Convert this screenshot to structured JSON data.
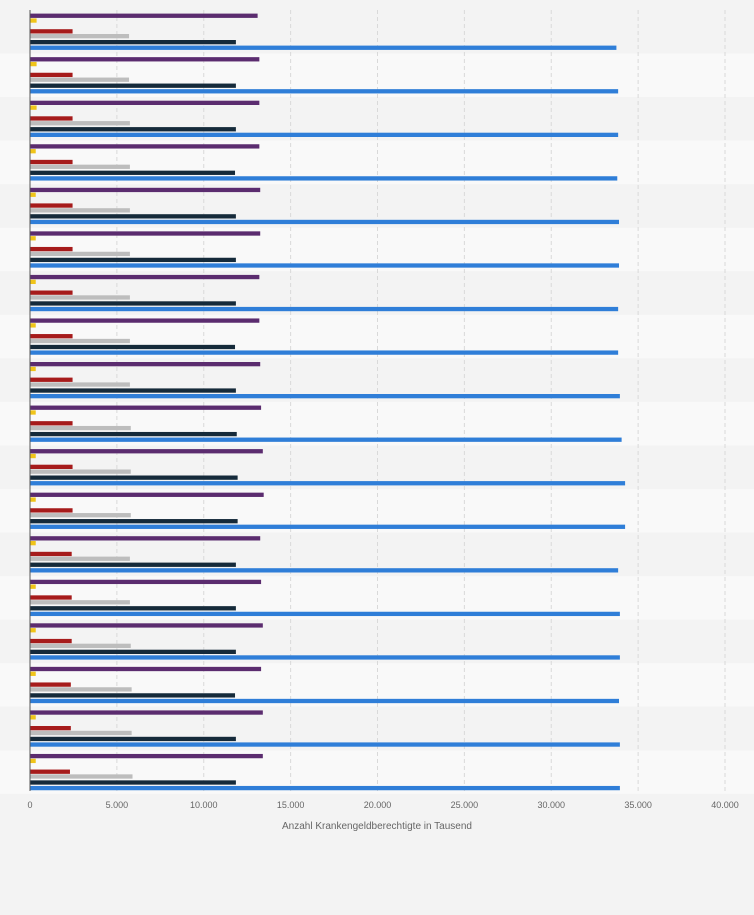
{
  "chart_data": {
    "type": "bar",
    "orientation": "horizontal",
    "xlabel": "Anzahl Krankengeldberechtigte in Tausend",
    "xlim": [
      0,
      40000
    ],
    "xticks": [
      0,
      5000,
      10000,
      15000,
      20000,
      25000,
      30000,
      35000,
      40000
    ],
    "xtick_labels": [
      "0",
      "5.000",
      "10.000",
      "15.000",
      "20.000",
      "25.000",
      "30.000",
      "35.000",
      "40.000"
    ],
    "grid": true,
    "legend": "none",
    "group_count": 18,
    "series": [
      {
        "color": "#5b2c6f",
        "values": [
          13100,
          13200,
          13200,
          13200,
          13250,
          13250,
          13200,
          13200,
          13250,
          13300,
          13400,
          13450,
          13250,
          13300,
          13400,
          13300,
          13400,
          13400
        ]
      },
      {
        "color": "#f0c419",
        "values": [
          380,
          380,
          380,
          330,
          330,
          330,
          330,
          330,
          330,
          330,
          330,
          330,
          330,
          330,
          330,
          330,
          330,
          330
        ]
      },
      {
        "color": "#a61b1b",
        "values": [
          2450,
          2450,
          2450,
          2450,
          2450,
          2450,
          2450,
          2450,
          2450,
          2450,
          2450,
          2450,
          2400,
          2400,
          2400,
          2350,
          2350,
          2300
        ]
      },
      {
        "color": "#bdbdbd",
        "values": [
          5700,
          5700,
          5750,
          5750,
          5750,
          5750,
          5750,
          5750,
          5750,
          5800,
          5800,
          5800,
          5750,
          5750,
          5800,
          5850,
          5850,
          5900
        ]
      },
      {
        "color": "#152a3a",
        "values": [
          11850,
          11850,
          11850,
          11800,
          11850,
          11850,
          11850,
          11800,
          11850,
          11900,
          11950,
          11950,
          11850,
          11850,
          11850,
          11800,
          11850,
          11850
        ]
      },
      {
        "color": "#2f7ed8",
        "values": [
          33750,
          33850,
          33850,
          33800,
          33900,
          33900,
          33850,
          33850,
          33950,
          34050,
          34250,
          34250,
          33850,
          33950,
          33950,
          33900,
          33950,
          33950
        ]
      }
    ]
  }
}
